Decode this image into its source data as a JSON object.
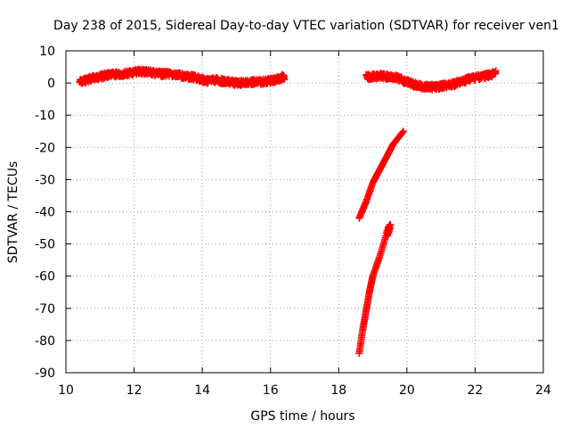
{
  "chart_data": {
    "type": "scatter",
    "title": "Day 238 of 2015, Sidereal Day-to-day VTEC variation (SDTVAR) for receiver ven1",
    "xlabel": "GPS time / hours",
    "ylabel": "SDTVAR / TECUs",
    "xlim": [
      10,
      24
    ],
    "ylim": [
      -90,
      10
    ],
    "xticks": [
      "10",
      "12",
      "14",
      "16",
      "18",
      "20",
      "22",
      "24"
    ],
    "yticks": [
      "10",
      "0",
      "-10",
      "-20",
      "-30",
      "-40",
      "-50",
      "-60",
      "-70",
      "-80",
      "-90"
    ],
    "grid": true,
    "marker": "plus",
    "color": "#ff0000",
    "series": [
      {
        "points": [
          [
            10.4,
            0.3
          ],
          [
            10.6,
            1.0
          ],
          [
            10.8,
            1.6
          ],
          [
            11.0,
            2.0
          ],
          [
            11.2,
            2.4
          ],
          [
            11.4,
            2.6
          ],
          [
            11.6,
            2.8
          ],
          [
            11.8,
            3.0
          ],
          [
            12.0,
            3.3
          ],
          [
            12.2,
            3.6
          ],
          [
            12.4,
            3.5
          ],
          [
            12.6,
            3.0
          ],
          [
            12.8,
            2.8
          ],
          [
            13.0,
            2.8
          ],
          [
            13.2,
            2.5
          ],
          [
            13.4,
            2.2
          ],
          [
            13.6,
            1.9
          ],
          [
            13.8,
            1.6
          ],
          [
            14.0,
            1.0
          ],
          [
            14.2,
            0.6
          ],
          [
            14.4,
            1.0
          ],
          [
            14.6,
            0.5
          ],
          [
            14.8,
            0.2
          ],
          [
            15.0,
            0.0
          ],
          [
            15.2,
            0.1
          ],
          [
            15.4,
            0.2
          ],
          [
            15.6,
            0.3
          ],
          [
            15.8,
            0.5
          ],
          [
            16.0,
            0.7
          ],
          [
            16.2,
            1.2
          ],
          [
            16.4,
            2.0
          ]
        ]
      },
      {
        "points": [
          [
            18.8,
            1.8
          ],
          [
            19.0,
            2.0
          ],
          [
            19.2,
            2.2
          ],
          [
            19.4,
            2.0
          ],
          [
            19.6,
            1.8
          ],
          [
            19.8,
            1.2
          ],
          [
            20.0,
            0.3
          ],
          [
            20.2,
            -0.5
          ],
          [
            20.4,
            -1.0
          ],
          [
            20.6,
            -1.2
          ],
          [
            20.8,
            -1.3
          ],
          [
            21.0,
            -1.0
          ],
          [
            21.2,
            -0.7
          ],
          [
            21.4,
            -0.3
          ],
          [
            21.6,
            0.5
          ],
          [
            21.8,
            1.3
          ],
          [
            22.0,
            1.8
          ],
          [
            22.2,
            2.0
          ],
          [
            22.4,
            2.5
          ],
          [
            22.6,
            3.0
          ]
        ]
      },
      {
        "points": [
          [
            18.6,
            -42.0
          ],
          [
            18.8,
            -37.0
          ],
          [
            19.0,
            -31.0
          ],
          [
            19.2,
            -27.0
          ],
          [
            19.4,
            -23.0
          ],
          [
            19.6,
            -19.0
          ],
          [
            19.9,
            -15.0
          ]
        ]
      },
      {
        "points": [
          [
            18.6,
            -84.0
          ],
          [
            18.7,
            -77.0
          ],
          [
            18.8,
            -71.0
          ],
          [
            18.9,
            -65.0
          ],
          [
            19.0,
            -60.0
          ],
          [
            19.2,
            -54.0
          ],
          [
            19.4,
            -47.0
          ],
          [
            19.5,
            -44.0
          ]
        ]
      }
    ]
  }
}
